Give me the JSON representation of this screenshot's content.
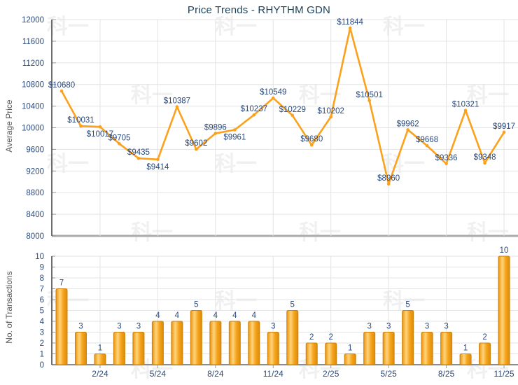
{
  "colors": {
    "title": "#1C425B",
    "navy": "#29497C",
    "line": "#FBA11B",
    "bar_stroke": "#CE8008",
    "grid": "#E3E3E3",
    "axis_line": "#3F3F3F",
    "price_baseline": "#ABABAB",
    "trans_baseline": "#8C8C8C",
    "tick": "#9A9A9A",
    "axis_title": "#555555",
    "watermark": "#8A8A8A"
  },
  "watermark": {
    "text": "科一"
  },
  "chart_data": [
    {
      "type": "line",
      "title": "Price Trends - RHYTHM GDN",
      "ylabel": "Average Price",
      "ylim": [
        8000,
        12000
      ],
      "ytick_step": 400,
      "yticks": [
        8000,
        8400,
        8800,
        9200,
        9600,
        10000,
        10400,
        10800,
        11200,
        11600,
        12000
      ],
      "grid": true,
      "values": [
        10680,
        10031,
        10017,
        9705,
        9435,
        9414,
        10387,
        9602,
        9896,
        9961,
        10237,
        10549,
        10229,
        9680,
        10202,
        11844,
        10501,
        8960,
        9962,
        9668,
        9336,
        10321,
        9348,
        9917
      ],
      "point_labels": [
        "$10680",
        "$10031",
        "$10017",
        "$9705",
        "$9435",
        "$9414",
        "$10387",
        "$9602",
        "$9896",
        "$9961",
        "$10237",
        "$10549",
        "$10229",
        "$9680",
        "$10202",
        "$11844",
        "$10501",
        "$8960",
        "$9962",
        "$9668",
        "$9336",
        "$10321",
        "$9348",
        "$9917"
      ],
      "labels_below_point_indices": [
        2,
        5,
        9
      ]
    },
    {
      "type": "bar",
      "ylabel": "No. of Transactions",
      "ylim": [
        0,
        10
      ],
      "ytick_step": 1,
      "yticks": [
        0,
        1,
        2,
        3,
        4,
        5,
        6,
        7,
        8,
        9,
        10
      ],
      "grid": true,
      "values": [
        7,
        3,
        1,
        3,
        3,
        4,
        4,
        5,
        4,
        4,
        4,
        3,
        5,
        2,
        2,
        1,
        3,
        3,
        5,
        3,
        3,
        1,
        2,
        10
      ],
      "bar_labels": [
        "7",
        "3",
        "1",
        "3",
        "3",
        "4",
        "4",
        "5",
        "4",
        "4",
        "4",
        "3",
        "5",
        "2",
        "2",
        "1",
        "3",
        "3",
        "5",
        "3",
        "3",
        "1",
        "2",
        "10"
      ],
      "xtick_labels": [
        "2/24",
        "5/24",
        "8/24",
        "11/24",
        "2/25",
        "5/25",
        "8/25",
        "11/25"
      ],
      "xtick_indices": [
        2,
        5,
        8,
        11,
        14,
        17,
        20,
        23
      ]
    }
  ]
}
